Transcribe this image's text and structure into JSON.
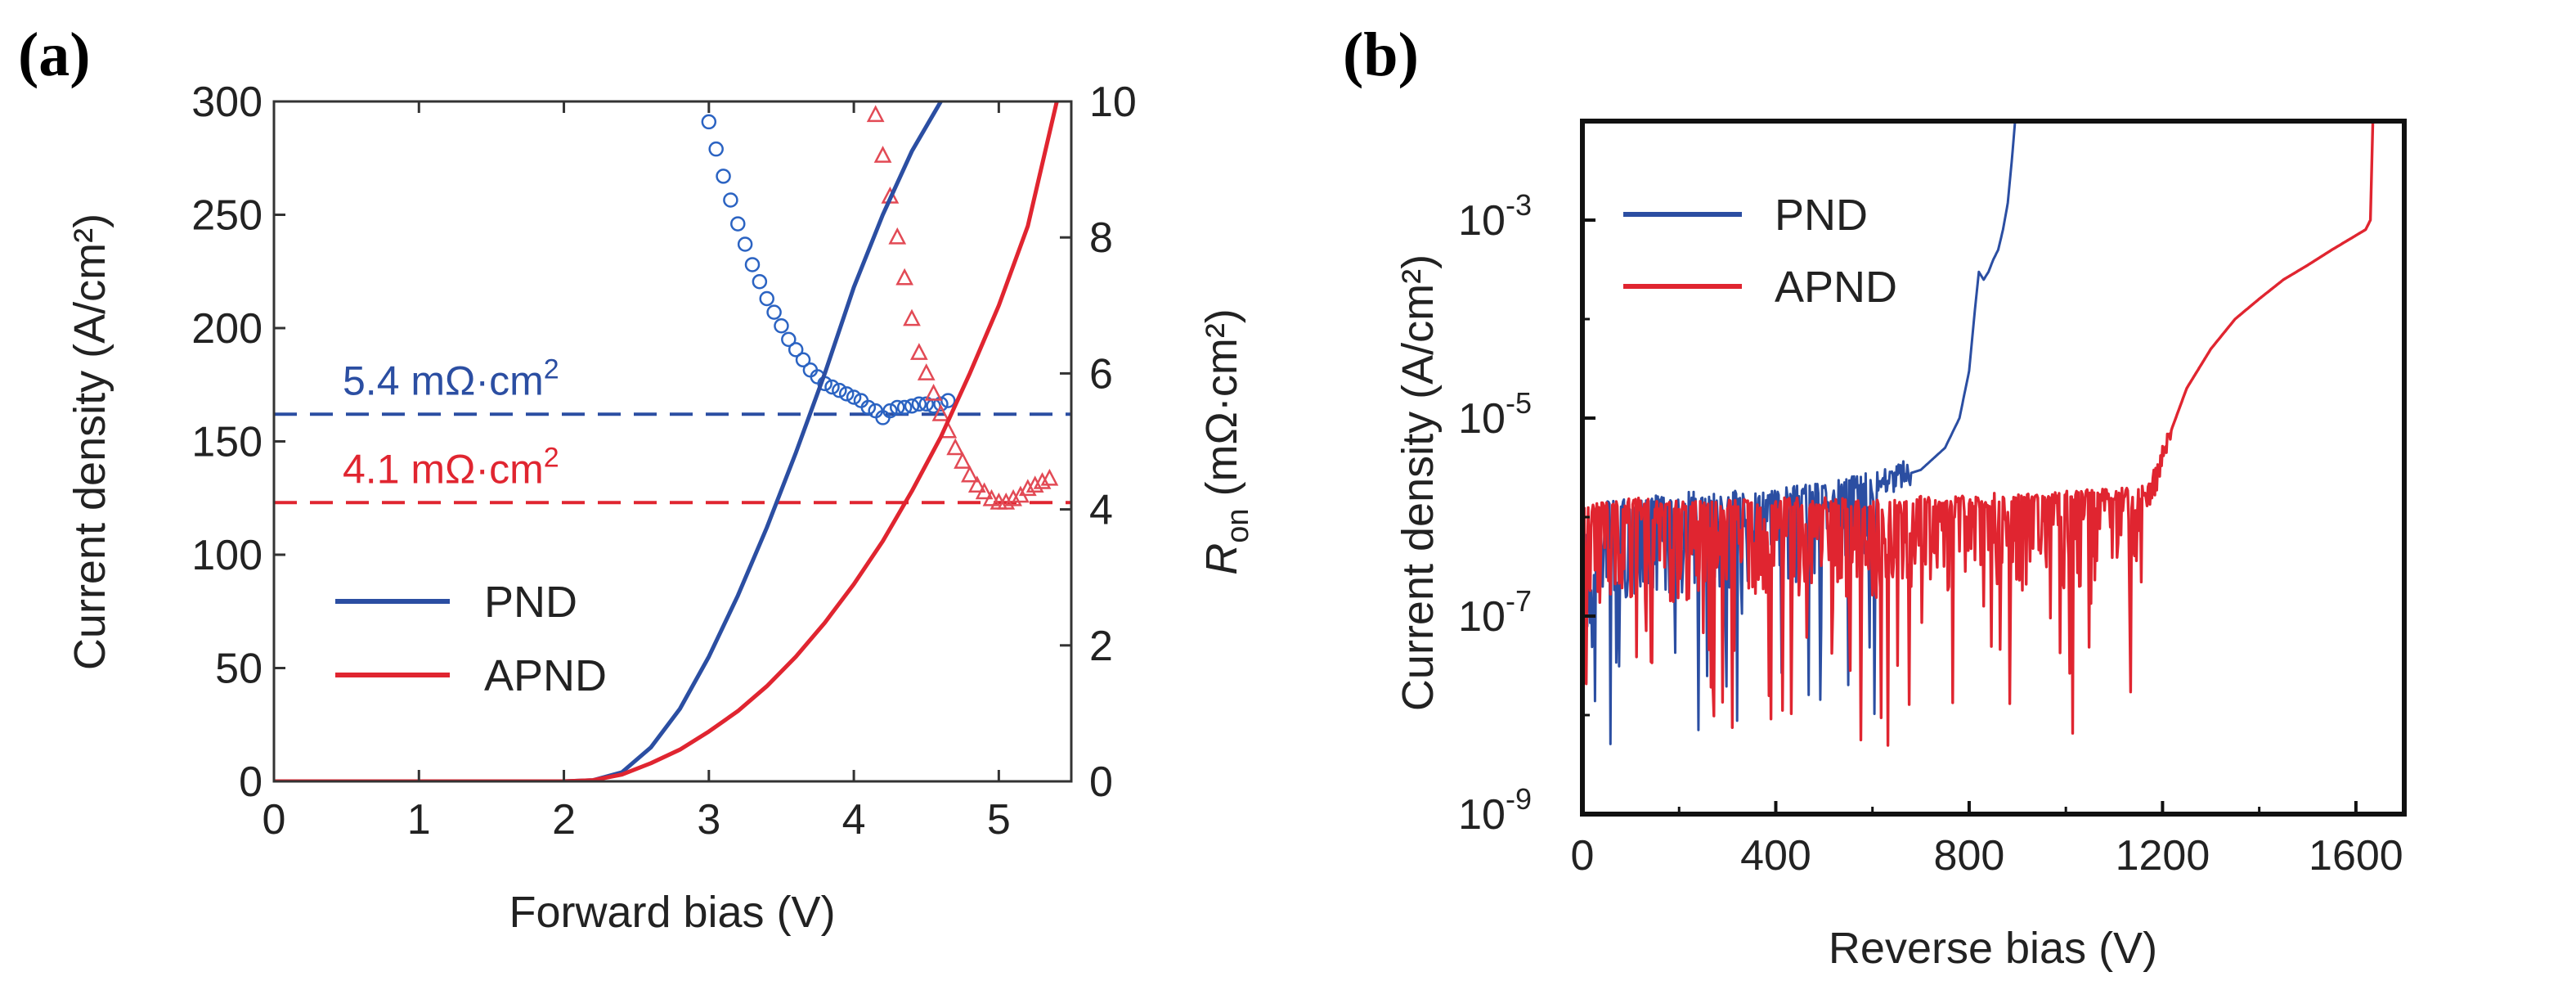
{
  "chart_data": [
    {
      "panel": "(a)",
      "type": "line",
      "xlabel": "Forward bias (V)",
      "ylabel": "Current density (A/cm²)",
      "y2label_main": "R",
      "y2label_sub": "on",
      "y2label_unit": " (mΩ·cm²)",
      "xlim": [
        0,
        5.5
      ],
      "ylim": [
        0,
        300
      ],
      "y2lim": [
        0,
        10
      ],
      "x_ticks": [
        "0",
        "1",
        "2",
        "3",
        "4",
        "5"
      ],
      "y_ticks": [
        "0",
        "50",
        "100",
        "150",
        "200",
        "250",
        "300"
      ],
      "y2_ticks": [
        "0",
        "2",
        "4",
        "6",
        "8",
        "10"
      ],
      "legend": {
        "position": "lower-left",
        "entries": [
          "PND",
          "APND"
        ]
      },
      "series": [
        {
          "name": "PND",
          "axis": "left",
          "style": "solid",
          "color": "#2b4ea2",
          "x": [
            0,
            2.0,
            2.2,
            2.4,
            2.6,
            2.8,
            3.0,
            3.2,
            3.4,
            3.6,
            3.8,
            4.0,
            4.2,
            4.4,
            4.6
          ],
          "y": [
            0,
            0,
            0.5,
            4,
            15,
            32,
            55,
            82,
            112,
            145,
            180,
            218,
            250,
            278,
            300
          ]
        },
        {
          "name": "APND",
          "axis": "left",
          "style": "solid",
          "color": "#e02530",
          "x": [
            0,
            2.0,
            2.2,
            2.4,
            2.6,
            2.8,
            3.0,
            3.2,
            3.4,
            3.6,
            3.8,
            4.0,
            4.2,
            4.4,
            4.6,
            4.8,
            5.0,
            5.2,
            5.4
          ],
          "y": [
            0,
            0,
            0.5,
            3,
            8,
            14,
            22,
            31,
            42,
            55,
            70,
            87,
            106,
            128,
            152,
            180,
            210,
            245,
            300
          ]
        },
        {
          "name": "PND",
          "axis": "right",
          "style": "circles",
          "color": "#2b63c2",
          "x": [
            3.0,
            3.05,
            3.1,
            3.15,
            3.2,
            3.25,
            3.3,
            3.35,
            3.4,
            3.45,
            3.5,
            3.55,
            3.6,
            3.65,
            3.7,
            3.75,
            3.8,
            3.85,
            3.9,
            3.95,
            4.0,
            4.05,
            4.1,
            4.15,
            4.2,
            4.25,
            4.3,
            4.35,
            4.4,
            4.45,
            4.5,
            4.55,
            4.6,
            4.65
          ],
          "y": [
            9.7,
            9.3,
            8.9,
            8.55,
            8.2,
            7.9,
            7.6,
            7.35,
            7.1,
            6.9,
            6.7,
            6.5,
            6.35,
            6.2,
            6.05,
            5.95,
            5.85,
            5.8,
            5.75,
            5.7,
            5.65,
            5.6,
            5.5,
            5.45,
            5.35,
            5.45,
            5.5,
            5.5,
            5.52,
            5.55,
            5.55,
            5.52,
            5.55,
            5.6
          ]
        },
        {
          "name": "APND",
          "axis": "right",
          "style": "triangles",
          "color": "#e24a55",
          "x": [
            4.15,
            4.2,
            4.25,
            4.3,
            4.35,
            4.4,
            4.45,
            4.5,
            4.55,
            4.6,
            4.65,
            4.7,
            4.75,
            4.8,
            4.85,
            4.9,
            4.95,
            5.0,
            5.05,
            5.1,
            5.15,
            5.2,
            5.25,
            5.3,
            5.35
          ],
          "y": [
            9.8,
            9.2,
            8.6,
            8.0,
            7.4,
            6.8,
            6.3,
            6.0,
            5.7,
            5.4,
            5.15,
            4.9,
            4.7,
            4.5,
            4.35,
            4.25,
            4.15,
            4.1,
            4.1,
            4.15,
            4.2,
            4.3,
            4.35,
            4.4,
            4.45
          ]
        }
      ],
      "annotations": [
        {
          "text": "5.4 mΩ·cm",
          "sup": "2",
          "value": 5.4,
          "axis": "right",
          "color": "#2b4ea2"
        },
        {
          "text": "4.1 mΩ·cm",
          "sup": "2",
          "value": 4.1,
          "axis": "right",
          "color": "#e02530"
        }
      ]
    },
    {
      "panel": "(b)",
      "type": "line",
      "xlabel": "Reverse bias (V)",
      "ylabel": "Current density (A/cm²)",
      "y_scale": "log",
      "xlim": [
        0,
        1700
      ],
      "ylim": [
        1e-09,
        0.01
      ],
      "x_ticks": [
        "0",
        "400",
        "800",
        "1200",
        "1600"
      ],
      "y_ticks": [
        {
          "base": "10",
          "exp": "-9"
        },
        {
          "base": "10",
          "exp": "-7"
        },
        {
          "base": "10",
          "exp": "-5"
        },
        {
          "base": "10",
          "exp": "-3"
        }
      ],
      "legend": {
        "position": "upper-left",
        "entries": [
          "PND",
          "APND"
        ]
      },
      "series": [
        {
          "name": "PND",
          "color": "#2b4ea2",
          "x": [
            0,
            20,
            40,
            60,
            100,
            150,
            200,
            230,
            250,
            300,
            400,
            500,
            600,
            650,
            700,
            750,
            780,
            800,
            810,
            820,
            830,
            840,
            850,
            860,
            870,
            880,
            890,
            895
          ],
          "y": [
            1e-06,
            3e-07,
            1e-06,
            1.2e-06,
            1.2e-06,
            1.3e-06,
            1.3e-06,
            1.4e-06,
            1.3e-06,
            1.4e-06,
            1.5e-06,
            1.7e-06,
            2.2e-06,
            2.5e-06,
            3e-06,
            5e-06,
            1e-05,
            3e-05,
            0.0001,
            0.0003,
            0.00025,
            0.0003,
            0.0004,
            0.0005,
            0.0008,
            0.0015,
            0.005,
            0.01
          ]
        },
        {
          "name": "APND",
          "color": "#e02530",
          "x": [
            0,
            100,
            200,
            400,
            600,
            800,
            1000,
            1100,
            1160,
            1180,
            1200,
            1220,
            1250,
            1300,
            1350,
            1400,
            1450,
            1500,
            1550,
            1600,
            1620,
            1630,
            1635
          ],
          "y": [
            1e-06,
            1.2e-06,
            1.1e-06,
            1.2e-06,
            1.2e-06,
            1.3e-06,
            1.4e-06,
            1.5e-06,
            1.6e-06,
            2e-06,
            4e-06,
            8e-06,
            2e-05,
            5e-05,
            0.0001,
            0.00016,
            0.00025,
            0.00035,
            0.0005,
            0.0007,
            0.0008,
            0.001,
            0.01
          ]
        }
      ]
    }
  ]
}
